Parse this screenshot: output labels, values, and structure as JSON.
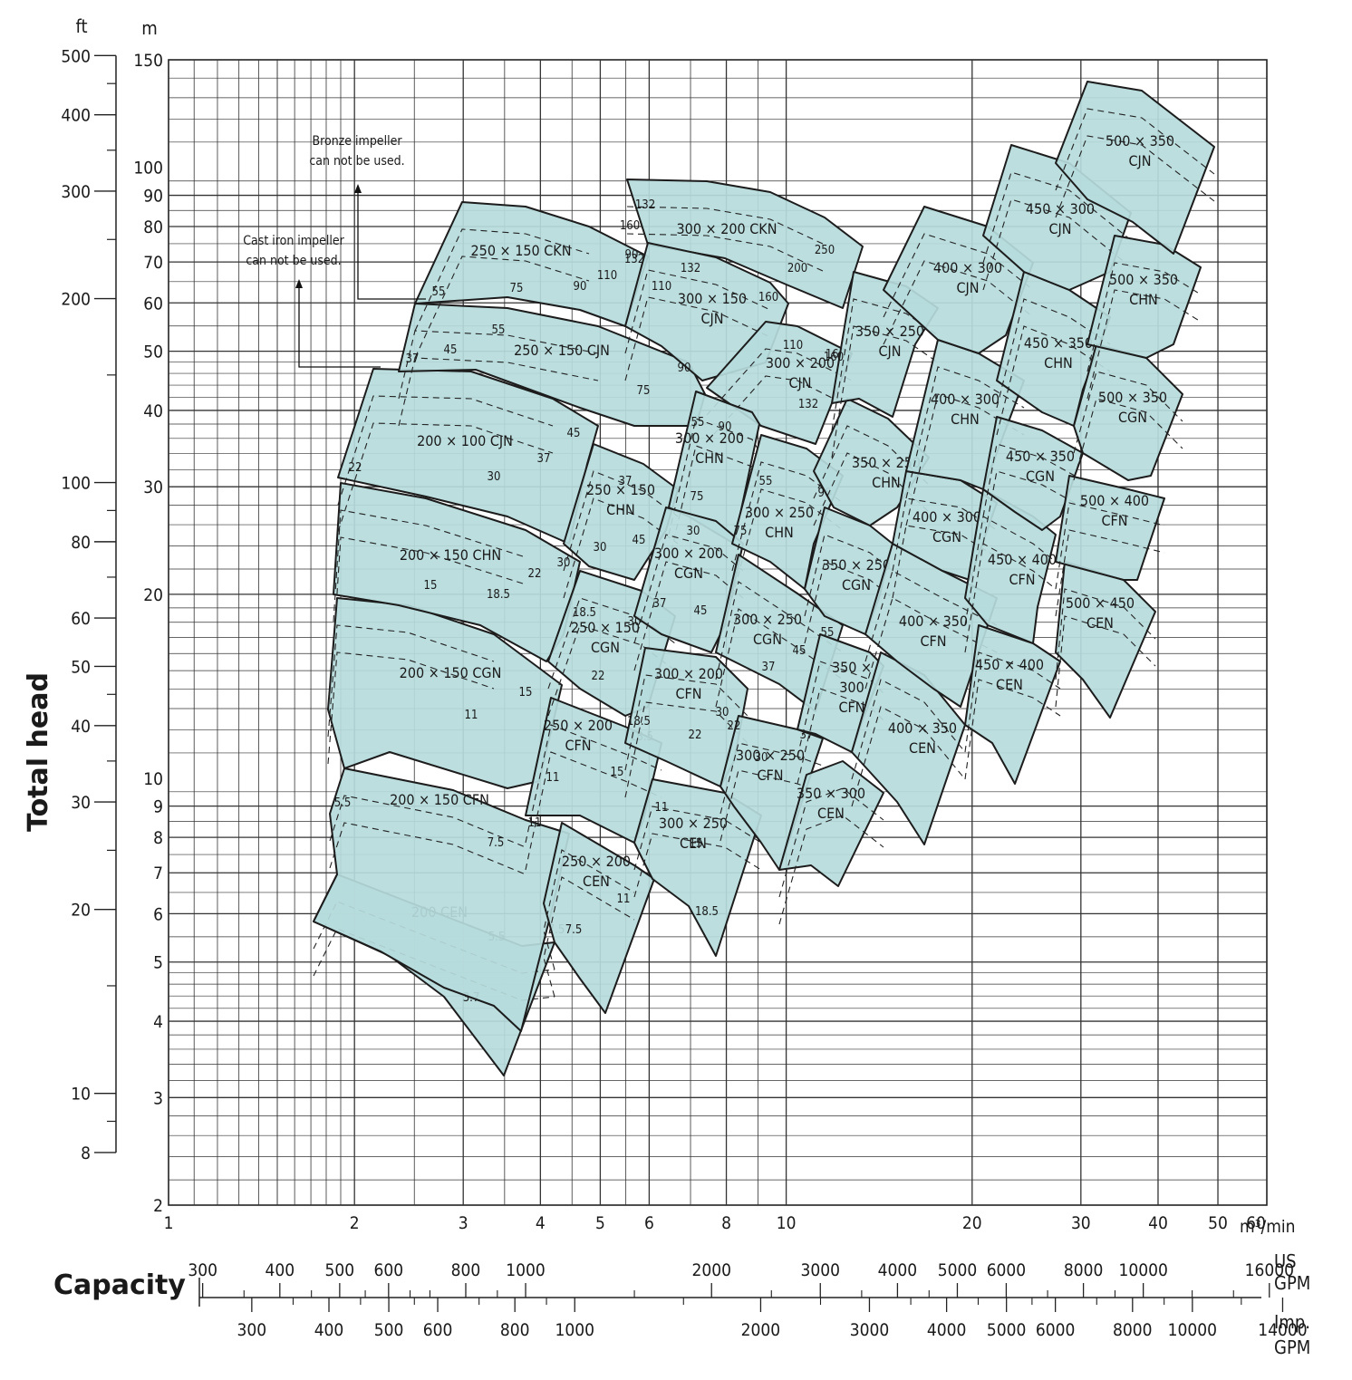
{
  "chart_data": {
    "type": "area",
    "title": "",
    "xlabel": "Capacity",
    "ylabel": "Total head",
    "x_unit": "m³/min",
    "y_unit_left": "ft",
    "y_unit_right": "m",
    "x_scale": "log",
    "y_scale": "log",
    "xlim": [
      1,
      60
    ],
    "ylim": [
      2,
      150
    ],
    "grid": true,
    "x_ticks": [
      "1",
      "2",
      "3",
      "4",
      "5",
      "6",
      "8",
      "10",
      "20",
      "30",
      "40",
      "50",
      "60"
    ],
    "y_ticks_m": [
      "2",
      "3",
      "4",
      "5",
      "6",
      "7",
      "8",
      "9",
      "10",
      "20",
      "30",
      "40",
      "50",
      "60",
      "70",
      "80",
      "90",
      "100",
      "150"
    ],
    "y_ticks_ft": [
      "8",
      "10",
      "20",
      "30",
      "40",
      "50",
      "60",
      "80",
      "100",
      "200",
      "300",
      "400",
      "500"
    ],
    "us_gpm_ticks": [
      "300",
      "400",
      "500",
      "600",
      "800",
      "1000",
      "2000",
      "3000",
      "4000",
      "5000",
      "6000",
      "8000",
      "10000",
      "16000"
    ],
    "us_gpm_label": [
      "US",
      "GPM"
    ],
    "imp_gpm_ticks": [
      "300",
      "400",
      "500",
      "600",
      "800",
      "1000",
      "2000",
      "3000",
      "4000",
      "5000",
      "6000",
      "8000",
      "10000",
      "14000"
    ],
    "imp_gpm_label": [
      "Imp.",
      "GPM"
    ],
    "notes": [
      {
        "lines": [
          "Bronze impeller",
          "can not be used."
        ]
      },
      {
        "lines": [
          "Cast iron impeller",
          "can not be used."
        ]
      }
    ],
    "fill_color": "#b6dbdc",
    "series": [
      {
        "name": "200 CEN",
        "lines": [
          "200 CEN"
        ],
        "efficiency_labels": [
          "5.5",
          "3.7",
          "7.5"
        ]
      },
      {
        "name": "200 × 150 CFN",
        "lines": [
          "200 × 150 CFN"
        ],
        "efficiency_labels": [
          "5.5",
          "7.5",
          "11"
        ]
      },
      {
        "name": "200 × 150 CGN",
        "lines": [
          "200 × 150 CGN"
        ],
        "efficiency_labels": [
          "11",
          "15"
        ]
      },
      {
        "name": "200 × 150 CHN",
        "lines": [
          "200 × 150 CHN"
        ],
        "efficiency_labels": [
          "15",
          "18.5",
          "22",
          "30"
        ]
      },
      {
        "name": "200 × 100 CJN",
        "lines": [
          "200 × 100 CJN"
        ],
        "efficiency_labels": [
          "22",
          "30",
          "37",
          "45"
        ]
      },
      {
        "name": "250 × 150 CJN",
        "lines": [
          "250 × 150 CJN"
        ],
        "efficiency_labels": [
          "37",
          "45",
          "55",
          "75"
        ]
      },
      {
        "name": "250 × 150 CKN",
        "lines": [
          "250 × 150 CKN"
        ],
        "efficiency_labels": [
          "55",
          "75",
          "90",
          "110",
          "132"
        ]
      },
      {
        "name": "250 × 200 CEN",
        "lines": [
          "250 × 200",
          "CEN"
        ],
        "efficiency_labels": [
          "7.5",
          "11"
        ]
      },
      {
        "name": "250 × 200 CFN",
        "lines": [
          "250 × 200",
          "CFN"
        ],
        "efficiency_labels": [
          "11",
          "15",
          "18.5"
        ]
      },
      {
        "name": "250 × 150 CGN",
        "lines": [
          "250 × 150",
          "CGN"
        ],
        "efficiency_labels": [
          "18.5",
          "22",
          "30"
        ]
      },
      {
        "name": "250 × 150 CHN",
        "lines": [
          "250 × 150",
          "CHN"
        ],
        "efficiency_labels": [
          "30",
          "37",
          "45"
        ]
      },
      {
        "name": "300 × 200 CKN",
        "lines": [
          "300 × 200 CKN"
        ],
        "efficiency_labels": [
          "132",
          "160",
          "200",
          "250"
        ]
      },
      {
        "name": "300 × 150 CJN",
        "lines": [
          "300 × 150",
          "CJN"
        ],
        "efficiency_labels": [
          "90",
          "110",
          "132",
          "160"
        ]
      },
      {
        "name": "300 × 200 CJN",
        "lines": [
          "300 × 200",
          "CJN"
        ],
        "efficiency_labels": [
          "90",
          "110",
          "132",
          "160"
        ]
      },
      {
        "name": "300 × 200 CHN",
        "lines": [
          "300 × 200",
          "CHN"
        ],
        "efficiency_labels": [
          "55",
          "75",
          "90"
        ]
      },
      {
        "name": "300 × 200 CGN",
        "lines": [
          "300 × 200",
          "CGN"
        ],
        "efficiency_labels": [
          "30",
          "37",
          "45"
        ]
      },
      {
        "name": "300 × 200 CFN",
        "lines": [
          "300 × 200",
          "CFN"
        ],
        "efficiency_labels": [
          "18.5",
          "22",
          "30"
        ]
      },
      {
        "name": "300 × 250 CEN",
        "lines": [
          "300 × 250",
          "CEN"
        ],
        "efficiency_labels": [
          "11",
          "15",
          "18.5"
        ]
      },
      {
        "name": "300 × 250 CHN",
        "lines": [
          "300 × 250",
          "CHN"
        ],
        "efficiency_labels": [
          "55",
          "75",
          "90"
        ]
      },
      {
        "name": "300 × 250 CGN",
        "lines": [
          "300 × 250",
          "CGN"
        ],
        "efficiency_labels": [
          "37",
          "45",
          "55"
        ]
      },
      {
        "name": "300 × 250 CFN",
        "lines": [
          "300 × 250",
          "CFN"
        ],
        "efficiency_labels": [
          "22",
          "30",
          "37"
        ]
      },
      {
        "name": "350 × 300 CEN",
        "lines": [
          "350 × 300",
          "CEN"
        ],
        "efficiency_labels": []
      },
      {
        "name": "350 × 300 CFN",
        "lines": [
          "350 ×",
          "300",
          "CFN"
        ],
        "efficiency_labels": []
      },
      {
        "name": "350 × 250 CGN",
        "lines": [
          "350 × 250",
          "CGN"
        ],
        "efficiency_labels": []
      },
      {
        "name": "350 × 250 CHN",
        "lines": [
          "350 × 250",
          "CHN"
        ],
        "efficiency_labels": []
      },
      {
        "name": "350 × 250 CJN",
        "lines": [
          "350 × 250",
          "CJN"
        ],
        "efficiency_labels": [
          "160"
        ]
      },
      {
        "name": "400 × 350 CEN",
        "lines": [
          "400 × 350",
          "CEN"
        ],
        "efficiency_labels": []
      },
      {
        "name": "400 × 350 CFN",
        "lines": [
          "400 × 350",
          "CFN"
        ],
        "efficiency_labels": []
      },
      {
        "name": "400 × 300 CGN",
        "lines": [
          "400 × 300",
          "CGN"
        ],
        "efficiency_labels": []
      },
      {
        "name": "400 × 300 CHN",
        "lines": [
          "400 × 300",
          "CHN"
        ],
        "efficiency_labels": []
      },
      {
        "name": "400 × 300 CJN",
        "lines": [
          "400 × 300",
          "CJN"
        ],
        "efficiency_labels": []
      },
      {
        "name": "450 × 400 CEN",
        "lines": [
          "450 × 400",
          "CEN"
        ],
        "efficiency_labels": []
      },
      {
        "name": "450 × 400 CFN",
        "lines": [
          "450 × 400",
          "CFN"
        ],
        "efficiency_labels": []
      },
      {
        "name": "450 × 350 CGN",
        "lines": [
          "450 × 350",
          "CGN"
        ],
        "efficiency_labels": []
      },
      {
        "name": "450 × 350 CHN",
        "lines": [
          "450 × 350",
          "CHN"
        ],
        "efficiency_labels": []
      },
      {
        "name": "450 × 300 CJN",
        "lines": [
          "450 × 300",
          "CJN"
        ],
        "efficiency_labels": []
      },
      {
        "name": "500 × 450 CEN",
        "lines": [
          "500 × 450",
          "CEN"
        ],
        "efficiency_labels": []
      },
      {
        "name": "500 × 400 CFN",
        "lines": [
          "500 × 400",
          "CFN"
        ],
        "efficiency_labels": []
      },
      {
        "name": "500 × 350 CGN",
        "lines": [
          "500 × 350",
          "CGN"
        ],
        "efficiency_labels": []
      },
      {
        "name": "500 × 350 CHN",
        "lines": [
          "500 × 350",
          "CHN"
        ],
        "efficiency_labels": []
      },
      {
        "name": "500 × 350 CJN",
        "lines": [
          "500 × 350",
          "CJN"
        ],
        "efficiency_labels": []
      }
    ]
  }
}
